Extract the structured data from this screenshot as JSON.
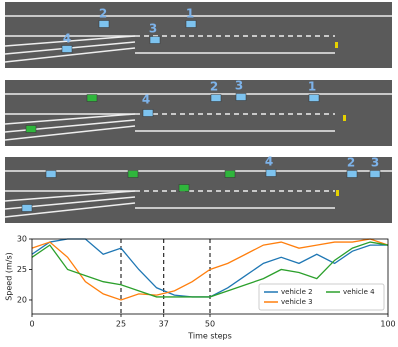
{
  "scenes": [
    {
      "labels": [
        "2",
        "1",
        "3",
        "4"
      ]
    },
    {
      "labels": [
        "4",
        "2",
        "3",
        "1"
      ]
    },
    {
      "labels": [
        "4",
        "2",
        "3"
      ]
    }
  ],
  "chart_data": {
    "type": "line",
    "ylabel": "Speed (m/s)",
    "xlabel": "Time steps",
    "x": [
      0,
      5,
      10,
      15,
      20,
      25,
      30,
      35,
      40,
      45,
      50,
      55,
      60,
      65,
      70,
      75,
      80,
      85,
      90,
      95,
      100
    ],
    "series": [
      {
        "name": "vehicle 2",
        "color": "#1f77b4",
        "values": [
          27.5,
          29.5,
          30,
          30,
          27.5,
          28.5,
          25,
          22,
          20.8,
          20.5,
          20.5,
          22,
          24,
          26,
          27,
          26,
          27.5,
          26,
          28,
          29,
          29
        ]
      },
      {
        "name": "vehicle 3",
        "color": "#ff7f0e",
        "values": [
          28.5,
          29.5,
          27,
          23,
          21,
          20,
          21,
          20.8,
          21.5,
          23,
          25,
          26,
          27.5,
          29,
          29.5,
          28.5,
          29,
          29.5,
          29.5,
          30,
          29
        ]
      },
      {
        "name": "vehicle 4",
        "color": "#2ca02c",
        "values": [
          27,
          29,
          25,
          24,
          23,
          22.5,
          21.5,
          20.5,
          20.5,
          20.5,
          20.5,
          21.5,
          22.5,
          23.5,
          25,
          24.5,
          23.5,
          26.5,
          28.5,
          29.5,
          29
        ]
      }
    ],
    "xlim": [
      0,
      100
    ],
    "xticks": [
      0,
      25,
      37,
      50,
      100
    ],
    "ylim": [
      17.7,
      30
    ],
    "yticks": [
      20,
      25,
      30
    ],
    "vlines": [
      25,
      37,
      50
    ],
    "legend": "lower right"
  }
}
